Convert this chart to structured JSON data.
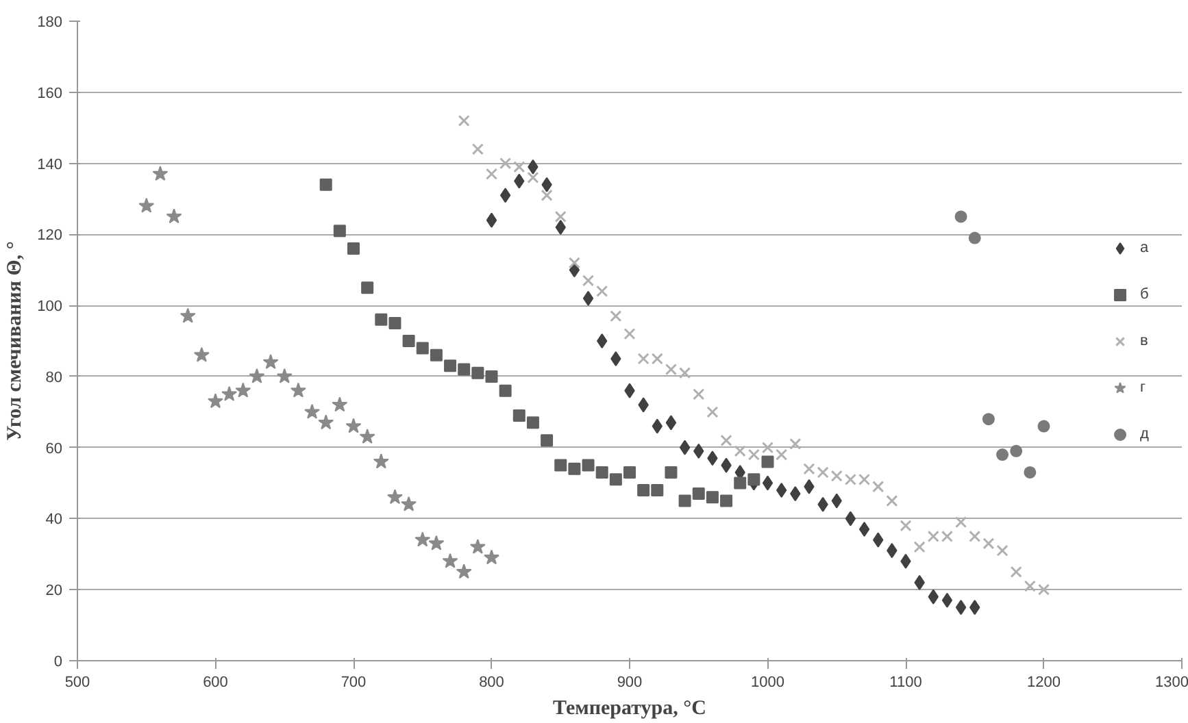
{
  "chart_data": {
    "type": "scatter",
    "xlabel": "Температура, °С",
    "ylabel": "Угол смечивания Θ, °",
    "xlim": [
      500,
      1300
    ],
    "xticks": [
      500,
      600,
      700,
      800,
      900,
      1000,
      1100,
      1200,
      1300
    ],
    "ylim": [
      0,
      180
    ],
    "yticks": [
      0,
      20,
      40,
      60,
      80,
      100,
      120,
      140,
      160,
      180
    ],
    "grid": "y",
    "legend": "right",
    "series": [
      {
        "name": "а",
        "color": "#404040",
        "marker": "diamond",
        "x": [
          800,
          810,
          820,
          830,
          840,
          850,
          860,
          870,
          880,
          890,
          900,
          910,
          920,
          930,
          940,
          950,
          960,
          970,
          980,
          990,
          1000,
          1010,
          1020,
          1030,
          1040,
          1050,
          1060,
          1070,
          1080,
          1090,
          1100,
          1110,
          1120,
          1130,
          1140,
          1150
        ],
        "values": [
          124,
          131,
          135,
          139,
          134,
          122,
          110,
          102,
          90,
          85,
          76,
          72,
          66,
          67,
          60,
          59,
          57,
          55,
          53,
          50,
          50,
          48,
          47,
          49,
          44,
          45,
          40,
          37,
          34,
          31,
          28,
          22,
          18,
          17,
          15,
          15
        ]
      },
      {
        "name": "б",
        "color": "#606060",
        "marker": "square",
        "x": [
          680,
          690,
          700,
          710,
          720,
          730,
          740,
          750,
          760,
          770,
          780,
          790,
          800,
          810,
          820,
          830,
          840,
          850,
          860,
          870,
          880,
          890,
          900,
          910,
          920,
          930,
          940,
          950,
          960,
          970,
          980,
          990,
          1000
        ],
        "values": [
          134,
          121,
          116,
          105,
          96,
          95,
          90,
          88,
          86,
          83,
          82,
          81,
          80,
          76,
          69,
          67,
          62,
          55,
          54,
          55,
          53,
          51,
          53,
          48,
          48,
          53,
          45,
          47,
          46,
          45,
          50,
          51,
          56
        ]
      },
      {
        "name": "в",
        "color": "#b0b0b0",
        "marker": "cross",
        "x": [
          780,
          790,
          800,
          810,
          820,
          830,
          840,
          850,
          860,
          870,
          880,
          890,
          900,
          910,
          920,
          930,
          940,
          950,
          960,
          970,
          980,
          990,
          1000,
          1010,
          1020,
          1030,
          1040,
          1050,
          1060,
          1070,
          1080,
          1090,
          1100,
          1110,
          1120,
          1130,
          1140,
          1150,
          1160,
          1170,
          1180,
          1190,
          1200
        ],
        "values": [
          152,
          144,
          137,
          140,
          139,
          136,
          131,
          125,
          112,
          107,
          104,
          97,
          92,
          85,
          85,
          82,
          81,
          75,
          70,
          62,
          59,
          58,
          60,
          58,
          61,
          54,
          53,
          52,
          51,
          51,
          49,
          45,
          38,
          32,
          35,
          35,
          39,
          35,
          33,
          31,
          25,
          21,
          20
        ]
      },
      {
        "name": "г",
        "color": "#8a8a8a",
        "marker": "star",
        "x": [
          550,
          560,
          570,
          580,
          590,
          600,
          610,
          620,
          630,
          640,
          650,
          660,
          670,
          680,
          690,
          700,
          710,
          720,
          730,
          740,
          750,
          760,
          770,
          780,
          790,
          800
        ],
        "values": [
          128,
          137,
          125,
          97,
          86,
          73,
          75,
          76,
          80,
          84,
          80,
          76,
          70,
          67,
          72,
          66,
          63,
          56,
          46,
          44,
          34,
          33,
          28,
          25,
          32,
          29
        ]
      },
      {
        "name": "д",
        "color": "#7a7a7a",
        "marker": "circle",
        "x": [
          1140,
          1150,
          1160,
          1170,
          1180,
          1190,
          1200
        ],
        "values": [
          125,
          119,
          68,
          58,
          59,
          53,
          66
        ]
      }
    ]
  }
}
